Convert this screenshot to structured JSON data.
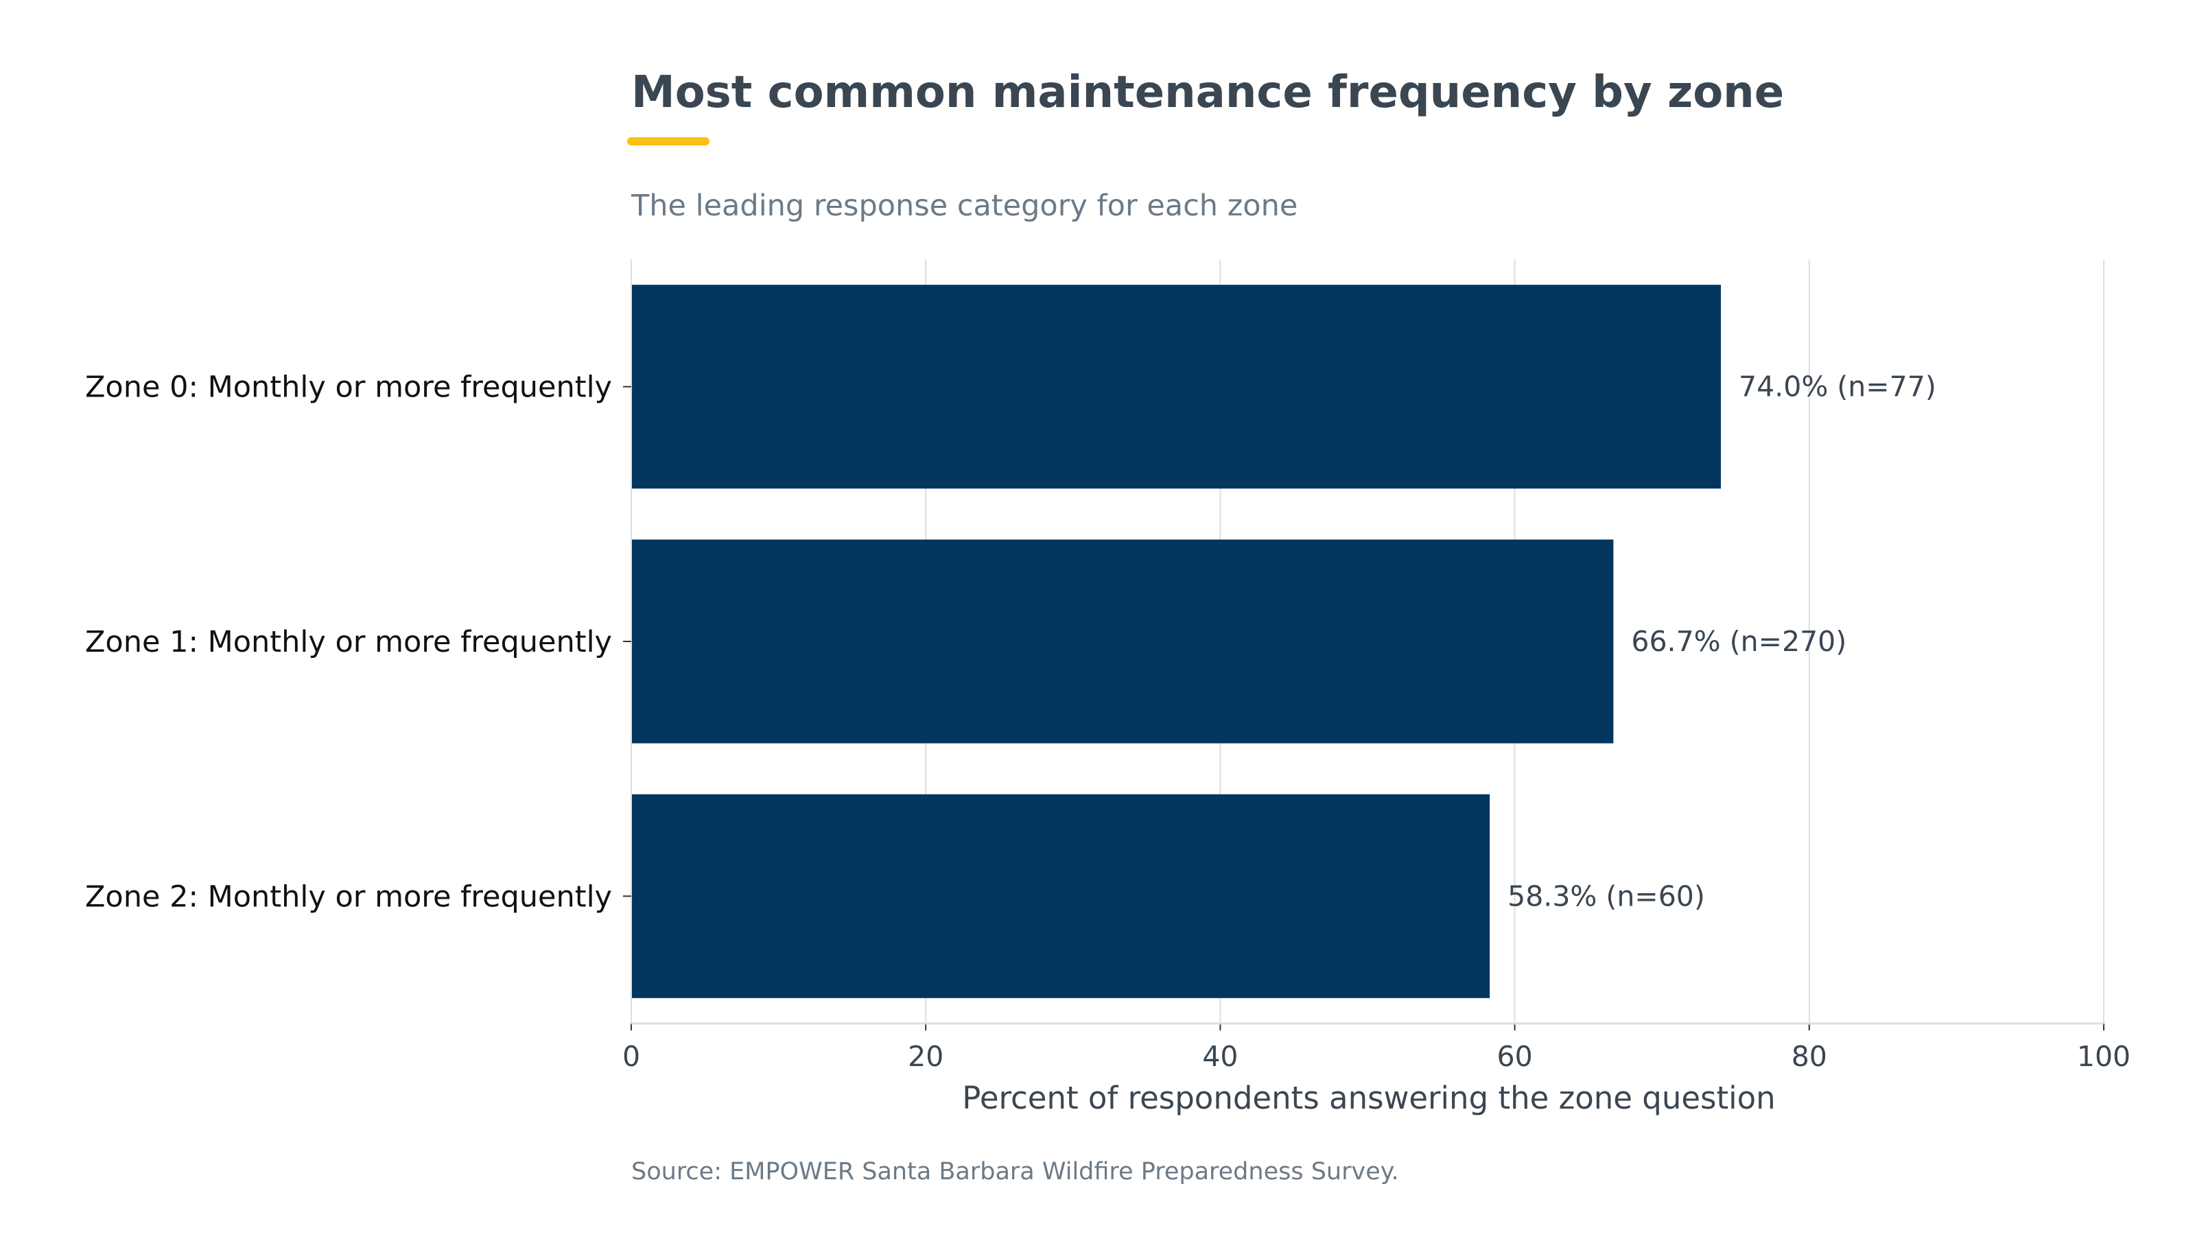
{
  "colors": {
    "bar": "#03365f",
    "accent": "#fbbf15",
    "title": "#3a4651",
    "subtitle": "#6b7a87",
    "grid": "#dedede",
    "category_text": "#111111",
    "value_text": "#3a4651",
    "tick_text": "#3a4651",
    "source_text": "#6b7a87"
  },
  "chart_data": {
    "type": "bar",
    "orientation": "horizontal",
    "title": "Most common maintenance frequency by zone",
    "subtitle": "The leading response category for each zone",
    "xlabel": "Percent of respondents answering the zone question",
    "ylabel": "",
    "xlim": [
      0,
      100
    ],
    "xticks": [
      0,
      20,
      40,
      60,
      80,
      100
    ],
    "grid": "vertical",
    "categories": [
      "Zone 0: Monthly or more frequently",
      "Zone 1: Monthly or more frequently",
      "Zone 2: Monthly or more frequently"
    ],
    "values": [
      74.0,
      66.7,
      58.3
    ],
    "labels": [
      "74.0% (n=77)",
      "66.7% (n=270)",
      "58.3% (n=60)"
    ],
    "source": "Source: EMPOWER Santa Barbara Wildfire Preparedness Survey."
  }
}
